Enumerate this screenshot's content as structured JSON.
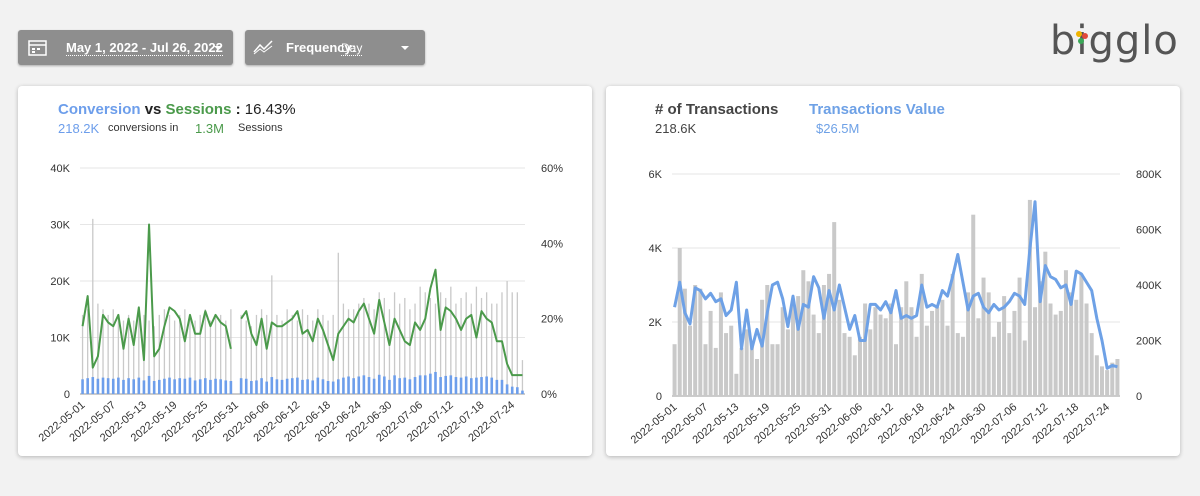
{
  "controls": {
    "date_range": "May 1, 2022 - Jul 26, 2022",
    "frequency_label": "Frequency:",
    "frequency_value": "Day"
  },
  "logo": "bigglo",
  "chart_data": [
    {
      "type": "combo",
      "header": {
        "metric_a": "Conversion",
        "vs": "vs",
        "metric_b": "Sessions",
        "colon": ":",
        "rate": "16.43%",
        "total_a": "218.2K",
        "total_a_text": "conversions in",
        "total_b": "1.3M",
        "total_b_text": "Sessions"
      },
      "categories": [
        "2022-05-01",
        null,
        null,
        null,
        null,
        null,
        "2022-05-07",
        null,
        null,
        null,
        null,
        null,
        "2022-05-13",
        null,
        null,
        null,
        null,
        null,
        "2022-05-19",
        null,
        null,
        null,
        null,
        null,
        "2022-05-25",
        null,
        null,
        null,
        null,
        null,
        "2022-05-31",
        null,
        null,
        null,
        null,
        null,
        "2022-06-06",
        null,
        null,
        null,
        null,
        null,
        "2022-06-12",
        null,
        null,
        null,
        null,
        null,
        "2022-06-18",
        null,
        null,
        null,
        null,
        null,
        "2022-06-24",
        null,
        null,
        null,
        null,
        null,
        "2022-06-30",
        null,
        null,
        null,
        null,
        null,
        "2022-07-06",
        null,
        null,
        null,
        null,
        null,
        "2022-07-12",
        null,
        null,
        null,
        null,
        null,
        "2022-07-18",
        null,
        null,
        null,
        null,
        null,
        "2022-07-24",
        null,
        null
      ],
      "ylim": [
        0,
        40000
      ],
      "yticks": [
        0,
        {
          "value": 10000,
          "label": "10K"
        },
        {
          "value": 20000,
          "label": "20K"
        },
        {
          "value": 30000,
          "label": "30K"
        },
        {
          "value": 40000,
          "label": "40K"
        }
      ],
      "y2lim": [
        0,
        60
      ],
      "y2ticks": [
        {
          "value": 0,
          "label": "0%"
        },
        {
          "value": 20,
          "label": "20%"
        },
        {
          "value": 40,
          "label": "40%"
        },
        {
          "value": 60,
          "label": "60%"
        }
      ],
      "grid": true,
      "series": [
        {
          "name": "Sessions",
          "kind": "bar",
          "color": "#c9c9c9",
          "values": [
            14000,
            15000,
            31000,
            16000,
            15000,
            14000,
            15000,
            14000,
            13000,
            14000,
            13000,
            15000,
            14000,
            13000,
            12000,
            14000,
            15000,
            14000,
            13000,
            14000,
            15000,
            14000,
            13000,
            14000,
            15000,
            13000,
            14000,
            14000,
            13000,
            15000,
            null,
            14000,
            13000,
            12000,
            14000,
            15000,
            14000,
            21000,
            14000,
            13000,
            15000,
            14000,
            13000,
            15000,
            14000,
            13000,
            15000,
            14000,
            13000,
            14000,
            25000,
            16000,
            15000,
            15000,
            16000,
            17000,
            16000,
            15000,
            18000,
            17000,
            15000,
            18000,
            16000,
            17000,
            15000,
            16000,
            19000,
            18000,
            17000,
            16000,
            18000,
            17000,
            19000,
            16000,
            17000,
            18000,
            16000,
            19000,
            17000,
            18000,
            16000,
            16000,
            18000,
            20000,
            18000,
            18000,
            6000
          ]
        },
        {
          "name": "Conversion",
          "kind": "bar",
          "color": "#6d9eeb",
          "values": [
            2600,
            2800,
            3000,
            2700,
            2900,
            2800,
            2700,
            2900,
            2500,
            2800,
            2600,
            2900,
            2400,
            3200,
            2300,
            2500,
            2700,
            2900,
            2600,
            2800,
            2700,
            2900,
            2400,
            2600,
            2800,
            2500,
            2700,
            2600,
            2400,
            2300,
            null,
            2800,
            2700,
            2300,
            2400,
            2800,
            2200,
            3000,
            2600,
            2500,
            2700,
            2800,
            2900,
            2500,
            2600,
            2400,
            2900,
            2600,
            2300,
            2200,
            2600,
            2900,
            3100,
            2800,
            3100,
            3300,
            3000,
            2700,
            3400,
            3100,
            2500,
            3300,
            2800,
            2900,
            2600,
            3000,
            3300,
            3300,
            3600,
            3900,
            3000,
            3200,
            3300,
            3000,
            2900,
            3100,
            2800,
            2900,
            3000,
            3100,
            2900,
            2500,
            2500,
            1700,
            1300,
            1200,
            600
          ]
        },
        {
          "name": "Conversion rate",
          "kind": "line",
          "axis": "y2",
          "color": "#4b9a4b",
          "values": [
            18,
            26,
            7,
            10,
            21,
            19,
            18,
            21,
            12,
            20,
            13,
            23,
            9,
            45,
            10,
            12,
            18,
            23,
            22,
            20,
            14,
            21,
            16,
            16,
            22,
            18,
            21,
            19,
            18,
            12,
            null,
            20,
            22,
            16,
            13,
            20,
            12,
            19,
            18,
            18,
            19,
            20,
            22,
            16,
            17,
            14,
            20,
            17,
            13,
            9,
            16,
            18,
            20,
            19,
            22,
            24,
            20,
            16,
            25,
            19,
            13,
            20,
            17,
            14,
            13,
            19,
            17,
            20,
            28,
            33,
            17,
            23,
            22,
            20,
            17,
            20,
            21,
            15,
            22,
            20,
            19,
            14,
            14,
            8,
            5,
            5,
            5
          ]
        }
      ]
    },
    {
      "type": "combo",
      "header": {
        "metric_a": "# of Transactions",
        "total_a": "218.6K",
        "metric_b": "Transactions Value",
        "total_b": "$26.5M"
      },
      "categories": [
        "2022-05-01",
        null,
        null,
        null,
        null,
        null,
        "2022-05-07",
        null,
        null,
        null,
        null,
        null,
        "2022-05-13",
        null,
        null,
        null,
        null,
        null,
        "2022-05-19",
        null,
        null,
        null,
        null,
        null,
        "2022-05-25",
        null,
        null,
        null,
        null,
        null,
        "2022-05-31",
        null,
        null,
        null,
        null,
        null,
        "2022-06-06",
        null,
        null,
        null,
        null,
        null,
        "2022-06-12",
        null,
        null,
        null,
        null,
        null,
        "2022-06-18",
        null,
        null,
        null,
        null,
        null,
        "2022-06-24",
        null,
        null,
        null,
        null,
        null,
        "2022-06-30",
        null,
        null,
        null,
        null,
        null,
        "2022-07-06",
        null,
        null,
        null,
        null,
        null,
        "2022-07-12",
        null,
        null,
        null,
        null,
        null,
        "2022-07-18",
        null,
        null,
        null,
        null,
        null,
        "2022-07-24",
        null,
        null
      ],
      "ylim": [
        0,
        6000
      ],
      "yticks": [
        0,
        {
          "value": 2000,
          "label": "2K"
        },
        {
          "value": 4000,
          "label": "4K"
        },
        {
          "value": 6000,
          "label": "6K"
        }
      ],
      "y2lim": [
        0,
        800000
      ],
      "y2ticks": [
        0,
        {
          "value": 200000,
          "label": "200K"
        },
        {
          "value": 400000,
          "label": "400K"
        },
        {
          "value": 600000,
          "label": "600K"
        },
        {
          "value": 800000,
          "label": "800K"
        }
      ],
      "grid": true,
      "series": [
        {
          "name": "# of Transactions",
          "kind": "bar",
          "color": "#c9c9c9",
          "values": [
            1400,
            4000,
            2900,
            1900,
            3000,
            2900,
            1400,
            2300,
            1300,
            2800,
            1700,
            1900,
            600,
            1300,
            1800,
            1400,
            1000,
            2600,
            3000,
            1400,
            1400,
            2400,
            1800,
            2500,
            2700,
            3400,
            3100,
            2200,
            1700,
            3000,
            3300,
            4700,
            2600,
            1700,
            1600,
            1100,
            1600,
            2500,
            1800,
            2400,
            2200,
            2100,
            2500,
            1400,
            2400,
            3100,
            2400,
            1600,
            3300,
            1900,
            2300,
            2400,
            2600,
            1900,
            3300,
            1700,
            1600,
            2800,
            4900,
            2100,
            3200,
            2800,
            1600,
            2000,
            2700,
            1700,
            2300,
            3200,
            1500,
            5300,
            2400,
            3100,
            3900,
            2500,
            2200,
            2300,
            3400,
            2800,
            2600,
            3300,
            2500,
            1700,
            1100,
            800,
            700,
            900,
            1000
          ]
        },
        {
          "name": "Transactions Value",
          "kind": "line",
          "axis": "y2",
          "color": "#6ea1e6",
          "values": [
            320000,
            410000,
            300000,
            260000,
            390000,
            380000,
            350000,
            370000,
            340000,
            350000,
            290000,
            310000,
            410000,
            170000,
            310000,
            170000,
            240000,
            180000,
            300000,
            400000,
            410000,
            350000,
            250000,
            360000,
            240000,
            330000,
            320000,
            430000,
            390000,
            280000,
            380000,
            310000,
            400000,
            320000,
            240000,
            290000,
            200000,
            200000,
            330000,
            330000,
            310000,
            340000,
            300000,
            380000,
            280000,
            290000,
            280000,
            290000,
            400000,
            320000,
            330000,
            320000,
            380000,
            360000,
            430000,
            510000,
            410000,
            310000,
            360000,
            370000,
            320000,
            300000,
            330000,
            310000,
            320000,
            340000,
            370000,
            360000,
            330000,
            530000,
            700000,
            340000,
            470000,
            430000,
            420000,
            390000,
            400000,
            330000,
            450000,
            440000,
            410000,
            380000,
            280000,
            200000,
            100000,
            110000,
            105000
          ]
        }
      ]
    }
  ]
}
